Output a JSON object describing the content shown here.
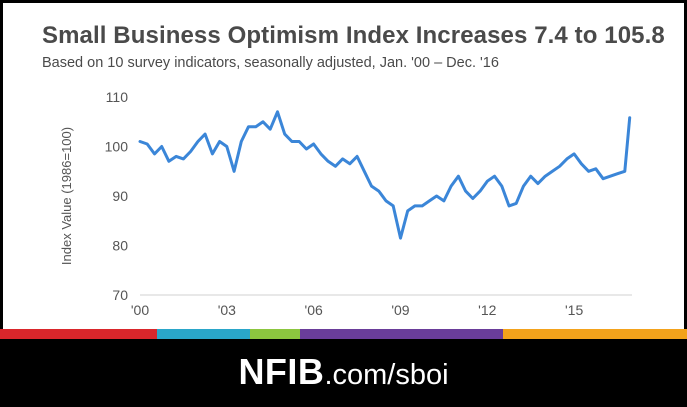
{
  "header": {
    "title": "Small Business Optimism Index Increases 7.4 to 105.8",
    "subtitle": "Based on 10 survey indicators, seasonally adjusted, Jan. '00 – Dec. '16"
  },
  "footer": {
    "brand_bold": "NFIB",
    "brand_rest": ".com/sboi",
    "stripe_colors": [
      "#d9262b",
      "#2aa6c9",
      "#8cc63f",
      "#6a3d9a",
      "#f3a21b"
    ]
  },
  "chart_data": {
    "type": "line",
    "title": "Small Business Optimism Index Increases 7.4 to 105.8",
    "subtitle": "Based on 10 survey indicators, seasonally adjusted, Jan. '00 – Dec. '16",
    "xlabel": "",
    "ylabel": "Index Value (1986=100)",
    "ylim": [
      70,
      110
    ],
    "xlim": [
      2000,
      2017
    ],
    "y_ticks": [
      70,
      80,
      90,
      100,
      110
    ],
    "x_ticks": [
      {
        "value": 2000,
        "label": "'00"
      },
      {
        "value": 2003,
        "label": "'03"
      },
      {
        "value": 2006,
        "label": "'06"
      },
      {
        "value": 2009,
        "label": "'09"
      },
      {
        "value": 2012,
        "label": "'12"
      },
      {
        "value": 2015,
        "label": "'15"
      }
    ],
    "grid": false,
    "line_color": "#3b86d8",
    "series": [
      {
        "x": [
          2000.0,
          2000.25,
          2000.5,
          2000.75,
          2001.0,
          2001.25,
          2001.5,
          2001.75,
          2002.0,
          2002.25,
          2002.5,
          2002.75,
          2003.0,
          2003.25,
          2003.5,
          2003.75,
          2004.0,
          2004.25,
          2004.5,
          2004.75,
          2005.0,
          2005.25,
          2005.5,
          2005.75,
          2006.0,
          2006.25,
          2006.5,
          2006.75,
          2007.0,
          2007.25,
          2007.5,
          2007.75,
          2008.0,
          2008.25,
          2008.5,
          2008.75,
          2009.0,
          2009.25,
          2009.5,
          2009.75,
          2010.0,
          2010.25,
          2010.5,
          2010.75,
          2011.0,
          2011.25,
          2011.5,
          2011.75,
          2012.0,
          2012.25,
          2012.5,
          2012.75,
          2013.0,
          2013.25,
          2013.5,
          2013.75,
          2014.0,
          2014.25,
          2014.5,
          2014.75,
          2015.0,
          2015.25,
          2015.5,
          2015.75,
          2016.0,
          2016.25,
          2016.5,
          2016.75,
          2016.92
        ],
        "values": [
          101,
          100.5,
          98.5,
          100,
          97,
          98,
          97.5,
          99,
          101,
          102.5,
          98.5,
          101,
          100,
          95,
          101,
          104,
          104,
          105,
          103.5,
          107,
          102.5,
          101,
          101,
          99.5,
          100.5,
          98.5,
          97,
          96,
          97.5,
          96.5,
          98,
          95,
          92,
          91,
          89,
          88,
          81.5,
          87,
          88,
          88,
          89,
          90,
          89,
          92,
          94,
          91,
          89.5,
          91,
          93,
          94,
          92,
          88,
          88.5,
          92,
          94,
          92.5,
          94,
          95,
          96,
          97.5,
          98.5,
          96.5,
          95,
          95.5,
          93.5,
          94,
          94.5,
          95,
          105.8
        ]
      }
    ]
  }
}
